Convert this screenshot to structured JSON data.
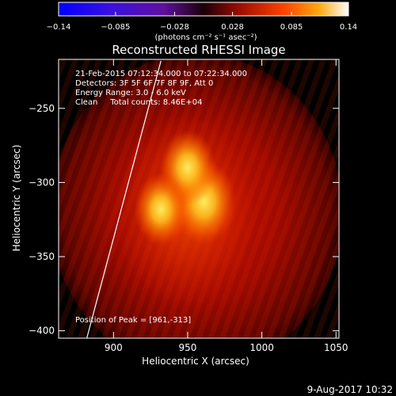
{
  "chart_data": {
    "type": "heatmap",
    "title": "Reconstructed RHESSI Image",
    "xlabel": "Heliocentric X (arcsec)",
    "ylabel": "Heliocentric Y (arcsec)",
    "xlim": [
      863,
      1052
    ],
    "ylim": [
      -405,
      -217
    ],
    "xticks": [
      900,
      950,
      1000,
      1050
    ],
    "yticks": [
      -250,
      -300,
      -350,
      -400
    ],
    "x_tick_labels": [
      "900",
      "950",
      "1000",
      "1050"
    ],
    "y_tick_labels": [
      "−250",
      "−300",
      "−350",
      "−400"
    ],
    "colorbar": {
      "min": -0.14,
      "max": 0.14,
      "tick_values": [
        -0.14,
        -0.085,
        -0.028,
        0.028,
        0.085,
        0.14
      ],
      "tick_labels": [
        "−0.14",
        "−0.085",
        "−0.028",
        "0.028",
        "0.085",
        "0.14"
      ],
      "unit_label": "(photons cm⁻² s⁻¹ asec⁻²)"
    },
    "annotations": [
      "21-Feb-2015 07:12:34.000 to 07:22:34.000",
      "Detectors: 3F 5F 6F 7F 8F 9F, Att 0",
      "Energy Range: 3.0 - 6.0 keV",
      "Clean     Total counts: 8.46E+04"
    ],
    "peak_label": "Position of Peak = [961,-313]",
    "sources": [
      {
        "x": 961,
        "y": -313,
        "value": 0.14
      },
      {
        "x": 950,
        "y": -290,
        "value": 0.11
      },
      {
        "x": 932,
        "y": -318,
        "value": 0.1
      }
    ],
    "limb_line": [
      [
        882,
        -405
      ],
      [
        932,
        -218
      ]
    ]
  },
  "footer": {
    "timestamp": "9-Aug-2017 10:32"
  }
}
